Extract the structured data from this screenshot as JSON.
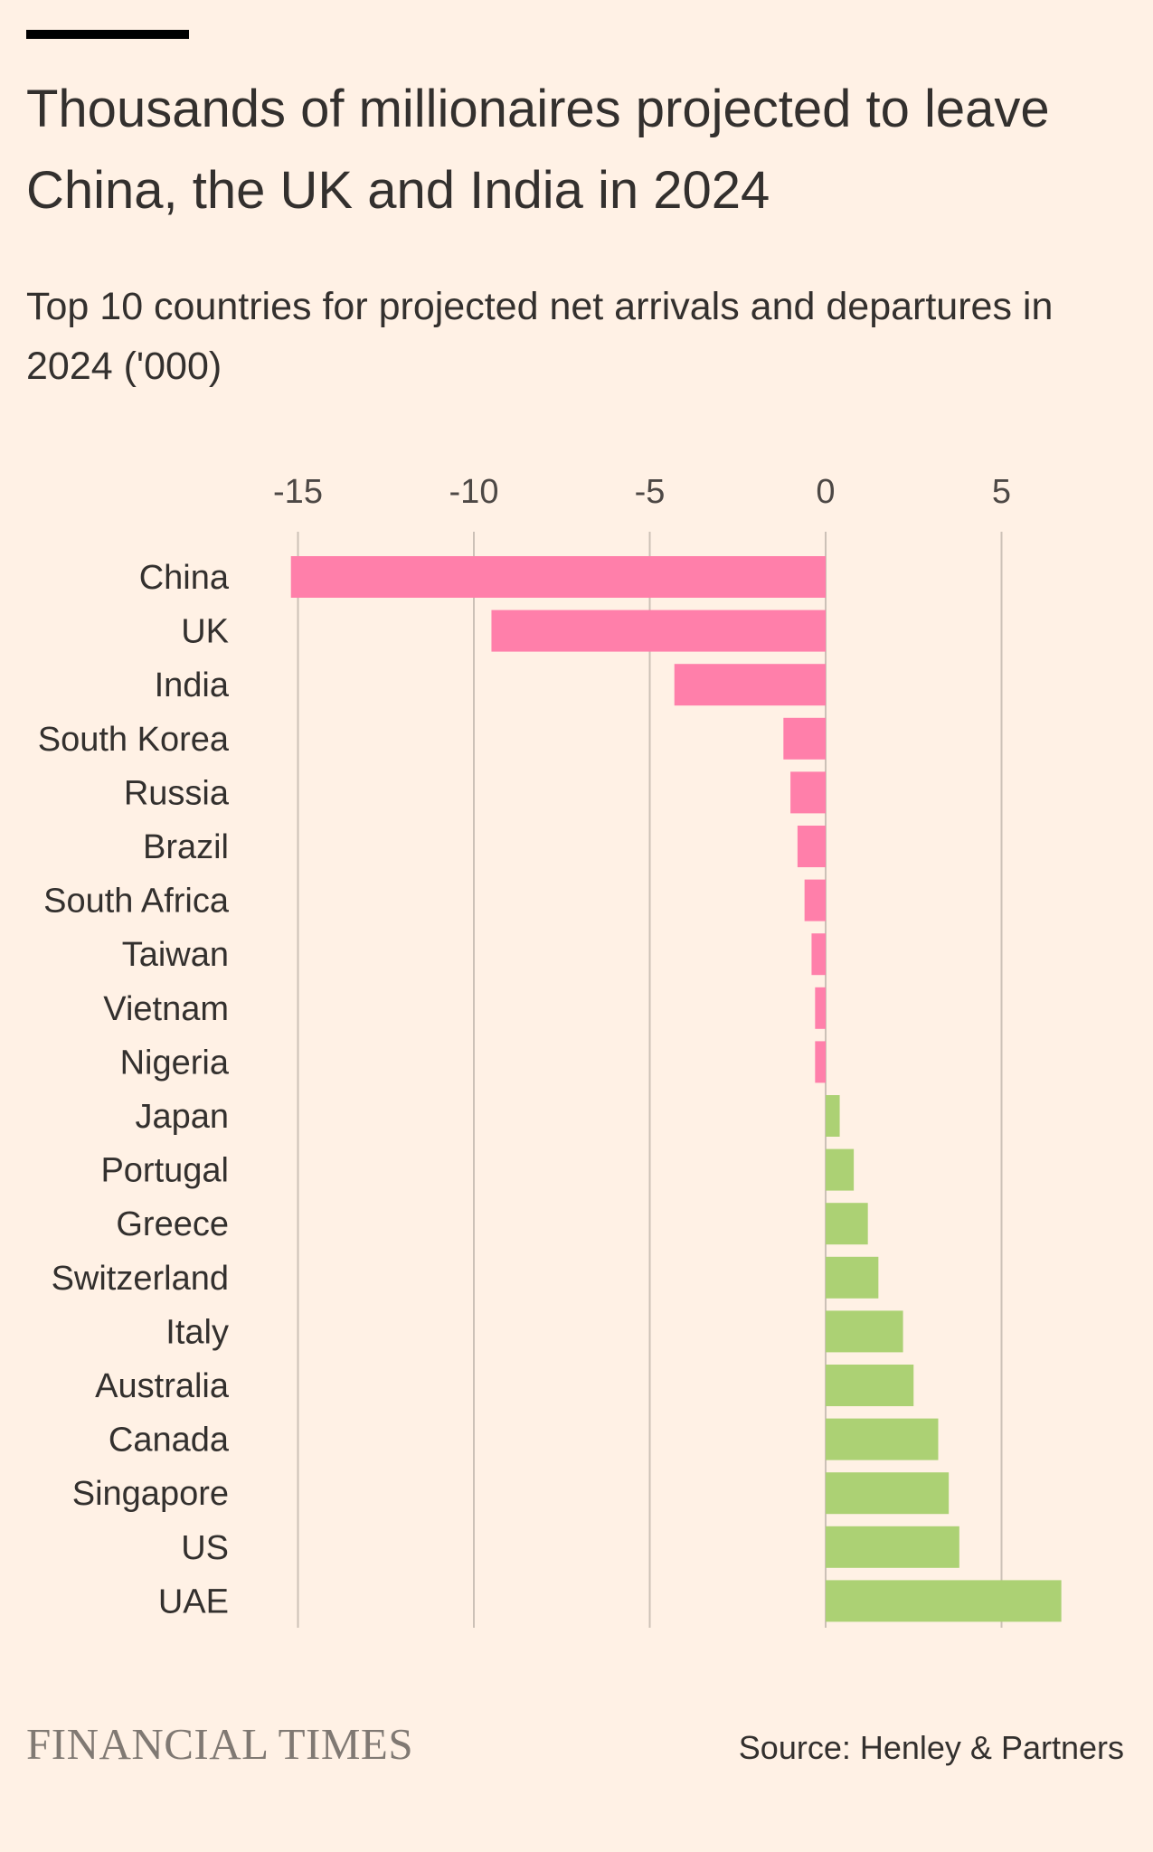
{
  "header": {
    "title": "Thousands of millionaires projected to leave China, the UK and India in 2024",
    "subtitle": "Top 10 countries for projected net arrivals and departures in 2024 ('000)"
  },
  "footer": {
    "brand": "FINANCIAL TIMES",
    "source": "Source: Henley & Partners"
  },
  "colors": {
    "background": "#fff1e5",
    "departures": "#ff7faa",
    "arrivals": "#acd174",
    "gridline": "#ccc1b7",
    "text": "#33302e"
  },
  "chart_data": {
    "type": "bar",
    "orientation": "horizontal",
    "xlim": [
      -15,
      5
    ],
    "x_ticks": [
      -15,
      -10,
      -5,
      0,
      5
    ],
    "x_tick_labels": [
      "-15",
      "-10",
      "-5",
      "0",
      "5"
    ],
    "grid": true,
    "categories": [
      "China",
      "UK",
      "India",
      "South Korea",
      "Russia",
      "Brazil",
      "South Africa",
      "Taiwan",
      "Vietnam",
      "Nigeria",
      "Japan",
      "Portugal",
      "Greece",
      "Switzerland",
      "Italy",
      "Australia",
      "Canada",
      "Singapore",
      "US",
      "UAE"
    ],
    "values": [
      -15.2,
      -9.5,
      -4.3,
      -1.2,
      -1.0,
      -0.8,
      -0.6,
      -0.4,
      -0.3,
      -0.3,
      0.4,
      0.8,
      1.2,
      1.5,
      2.2,
      2.5,
      3.2,
      3.5,
      3.8,
      6.7
    ]
  }
}
